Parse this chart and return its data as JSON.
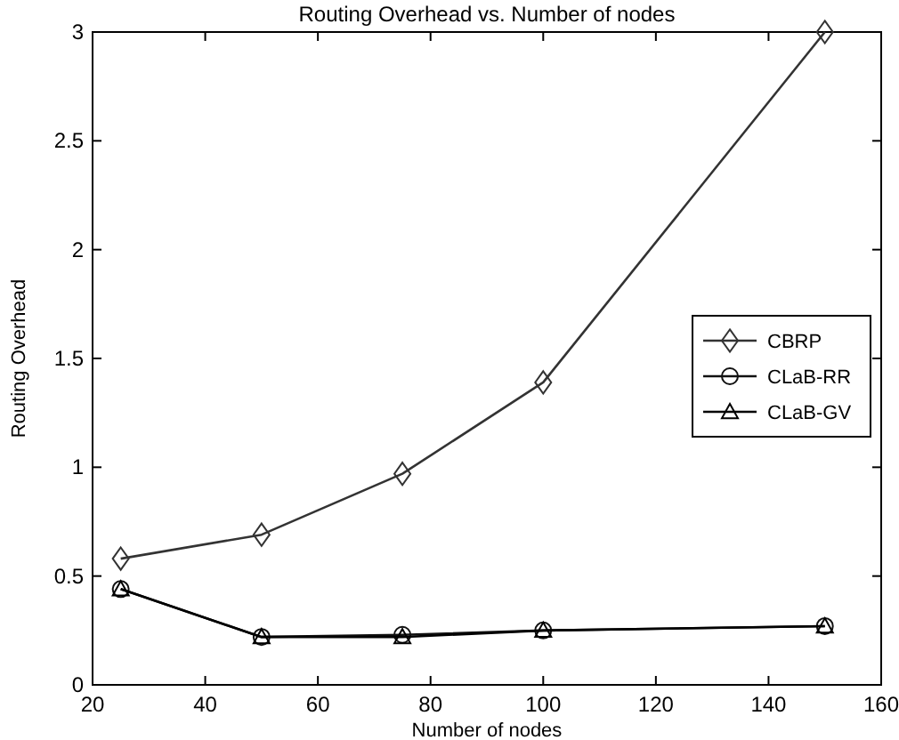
{
  "chart_data": {
    "type": "line",
    "title": "Routing Overhead vs. Number of nodes",
    "xlabel": "Number of nodes",
    "ylabel": "Routing Overhead",
    "x": [
      25,
      50,
      75,
      100,
      150
    ],
    "series": [
      {
        "name": "CBRP",
        "color": "#333333",
        "marker": "diamond",
        "values": [
          0.58,
          0.69,
          0.97,
          1.39,
          3.0
        ]
      },
      {
        "name": "CLaB-RR",
        "color": "#111111",
        "marker": "circle",
        "values": [
          0.44,
          0.22,
          0.23,
          0.25,
          0.27
        ]
      },
      {
        "name": "CLaB-GV",
        "color": "#000000",
        "marker": "triangle",
        "values": [
          0.44,
          0.22,
          0.22,
          0.25,
          0.27
        ]
      }
    ],
    "xlim": [
      20,
      160
    ],
    "xticks": [
      20,
      40,
      60,
      80,
      100,
      120,
      140,
      160
    ],
    "ylim": [
      0,
      3
    ],
    "yticks": [
      0,
      0.5,
      1,
      1.5,
      2,
      2.5,
      3
    ],
    "grid": false,
    "legend": "right",
    "line_style": "solid"
  }
}
